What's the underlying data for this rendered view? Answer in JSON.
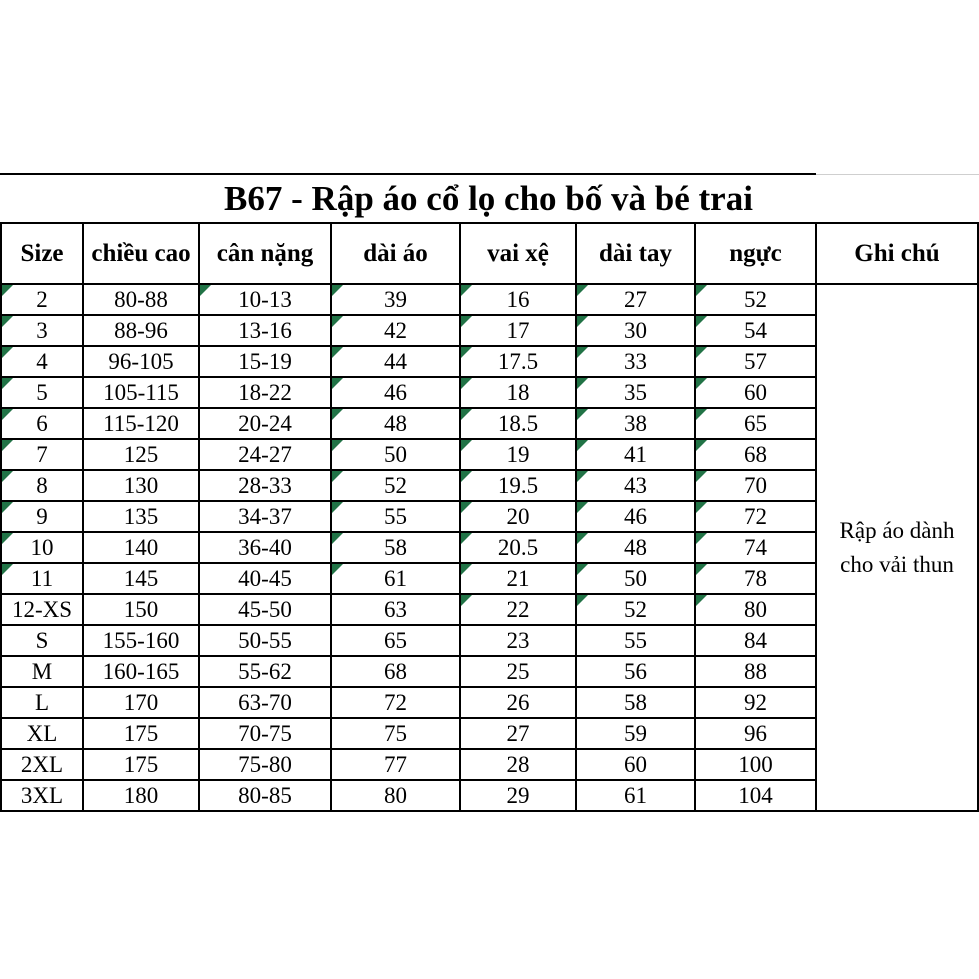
{
  "title": "B67 - Rập áo cổ lọ cho bố và bé trai",
  "colors": {
    "border_black": "#000000",
    "gridline_gray": "#cfcfcf",
    "triangle_green": "#217346",
    "background": "#ffffff"
  },
  "table": {
    "columns": [
      "Size",
      "chiều cao",
      "cân nặng",
      "dài áo",
      "vai xệ",
      "dài tay",
      "ngực",
      "Ghi chú"
    ],
    "note": "Rập áo dành cho vải thun",
    "note_lines": [
      "Rập áo dành",
      "cho vải thun"
    ],
    "rows": [
      {
        "size": "2",
        "chieu_cao": "80-88",
        "can_nang": "10-13",
        "dai_ao": "39",
        "vai_xe": "16",
        "dai_tay": "27",
        "nguc": "52",
        "triangles": [
          0,
          2,
          3,
          4,
          5,
          6
        ]
      },
      {
        "size": "3",
        "chieu_cao": "88-96",
        "can_nang": "13-16",
        "dai_ao": "42",
        "vai_xe": "17",
        "dai_tay": "30",
        "nguc": "54",
        "triangles": [
          0,
          3,
          4,
          5,
          6
        ]
      },
      {
        "size": "4",
        "chieu_cao": "96-105",
        "can_nang": "15-19",
        "dai_ao": "44",
        "vai_xe": "17.5",
        "dai_tay": "33",
        "nguc": "57",
        "triangles": [
          0,
          3,
          4,
          5,
          6
        ]
      },
      {
        "size": "5",
        "chieu_cao": "105-115",
        "can_nang": "18-22",
        "dai_ao": "46",
        "vai_xe": "18",
        "dai_tay": "35",
        "nguc": "60",
        "triangles": [
          0,
          3,
          4,
          5,
          6
        ]
      },
      {
        "size": "6",
        "chieu_cao": "115-120",
        "can_nang": "20-24",
        "dai_ao": "48",
        "vai_xe": "18.5",
        "dai_tay": "38",
        "nguc": "65",
        "triangles": [
          0,
          3,
          4,
          5,
          6
        ]
      },
      {
        "size": "7",
        "chieu_cao": "125",
        "can_nang": "24-27",
        "dai_ao": "50",
        "vai_xe": "19",
        "dai_tay": "41",
        "nguc": "68",
        "triangles": [
          0,
          3,
          4,
          5,
          6
        ]
      },
      {
        "size": "8",
        "chieu_cao": "130",
        "can_nang": "28-33",
        "dai_ao": "52",
        "vai_xe": "19.5",
        "dai_tay": "43",
        "nguc": "70",
        "triangles": [
          0,
          3,
          4,
          5,
          6
        ]
      },
      {
        "size": "9",
        "chieu_cao": "135",
        "can_nang": "34-37",
        "dai_ao": "55",
        "vai_xe": "20",
        "dai_tay": "46",
        "nguc": "72",
        "triangles": [
          0,
          3,
          4,
          5,
          6
        ]
      },
      {
        "size": "10",
        "chieu_cao": "140",
        "can_nang": "36-40",
        "dai_ao": "58",
        "vai_xe": "20.5",
        "dai_tay": "48",
        "nguc": "74",
        "triangles": [
          0,
          3,
          4,
          5,
          6
        ]
      },
      {
        "size": "11",
        "chieu_cao": "145",
        "can_nang": "40-45",
        "dai_ao": "61",
        "vai_xe": "21",
        "dai_tay": "50",
        "nguc": "78",
        "triangles": [
          0,
          3,
          4,
          5,
          6
        ]
      },
      {
        "size": "12-XS",
        "chieu_cao": "150",
        "can_nang": "45-50",
        "dai_ao": "63",
        "vai_xe": "22",
        "dai_tay": "52",
        "nguc": "80",
        "triangles": [
          4,
          5,
          6
        ]
      },
      {
        "size": "S",
        "chieu_cao": "155-160",
        "can_nang": "50-55",
        "dai_ao": "65",
        "vai_xe": "23",
        "dai_tay": "55",
        "nguc": "84",
        "triangles": []
      },
      {
        "size": "M",
        "chieu_cao": "160-165",
        "can_nang": "55-62",
        "dai_ao": "68",
        "vai_xe": "25",
        "dai_tay": "56",
        "nguc": "88",
        "triangles": []
      },
      {
        "size": "L",
        "chieu_cao": "170",
        "can_nang": "63-70",
        "dai_ao": "72",
        "vai_xe": "26",
        "dai_tay": "58",
        "nguc": "92",
        "triangles": []
      },
      {
        "size": "XL",
        "chieu_cao": "175",
        "can_nang": "70-75",
        "dai_ao": "75",
        "vai_xe": "27",
        "dai_tay": "59",
        "nguc": "96",
        "triangles": []
      },
      {
        "size": "2XL",
        "chieu_cao": "175",
        "can_nang": "75-80",
        "dai_ao": "77",
        "vai_xe": "28",
        "dai_tay": "60",
        "nguc": "100",
        "triangles": []
      },
      {
        "size": "3XL",
        "chieu_cao": "180",
        "can_nang": "80-85",
        "dai_ao": "80",
        "vai_xe": "29",
        "dai_tay": "61",
        "nguc": "104",
        "triangles": []
      }
    ]
  }
}
